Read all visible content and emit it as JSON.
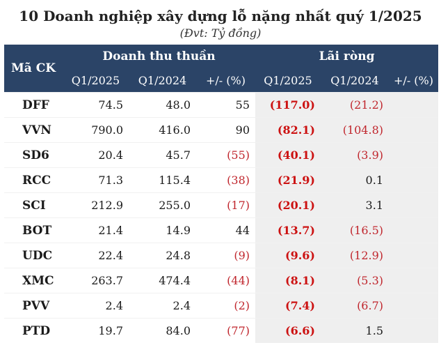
{
  "title": "10 Doanh nghiệp xây dựng lỗ nặng nhất quý 1/2025",
  "subtitle": "(Đvt: Tỷ đồng)",
  "header": {
    "code": "Mã CK",
    "revenue": "Doanh thu thuần",
    "profit": "Lãi ròng",
    "q2025": "Q1/2025",
    "q2024": "Q1/2024",
    "change": "+/- (%)"
  },
  "colors": {
    "header_bg": "#2b4467",
    "negative": "#c0262d",
    "shade": "#efefef"
  },
  "rows": [
    {
      "code": "DFF",
      "rev25": "74.5",
      "rev24": "48.0",
      "revchg": "55",
      "np25": "(117.0)",
      "np24": "(21.2)",
      "npchg": ""
    },
    {
      "code": "VVN",
      "rev25": "790.0",
      "rev24": "416.0",
      "revchg": "90",
      "np25": "(82.1)",
      "np24": "(104.8)",
      "npchg": ""
    },
    {
      "code": "SD6",
      "rev25": "20.4",
      "rev24": "45.7",
      "revchg": "(55)",
      "np25": "(40.1)",
      "np24": "(3.9)",
      "npchg": ""
    },
    {
      "code": "RCC",
      "rev25": "71.3",
      "rev24": "115.4",
      "revchg": "(38)",
      "np25": "(21.9)",
      "np24": "0.1",
      "npchg": ""
    },
    {
      "code": "SCI",
      "rev25": "212.9",
      "rev24": "255.0",
      "revchg": "(17)",
      "np25": "(20.1)",
      "np24": "3.1",
      "npchg": ""
    },
    {
      "code": "BOT",
      "rev25": "21.4",
      "rev24": "14.9",
      "revchg": "44",
      "np25": "(13.7)",
      "np24": "(16.5)",
      "npchg": ""
    },
    {
      "code": "UDC",
      "rev25": "22.4",
      "rev24": "24.8",
      "revchg": "(9)",
      "np25": "(9.6)",
      "np24": "(12.9)",
      "npchg": ""
    },
    {
      "code": "XMC",
      "rev25": "263.7",
      "rev24": "474.4",
      "revchg": "(44)",
      "np25": "(8.1)",
      "np24": "(5.3)",
      "npchg": ""
    },
    {
      "code": "PVV",
      "rev25": "2.4",
      "rev24": "2.4",
      "revchg": "(2)",
      "np25": "(7.4)",
      "np24": "(6.7)",
      "npchg": ""
    },
    {
      "code": "PTD",
      "rev25": "19.7",
      "rev24": "84.0",
      "revchg": "(77)",
      "np25": "(6.6)",
      "np24": "1.5",
      "npchg": ""
    }
  ]
}
